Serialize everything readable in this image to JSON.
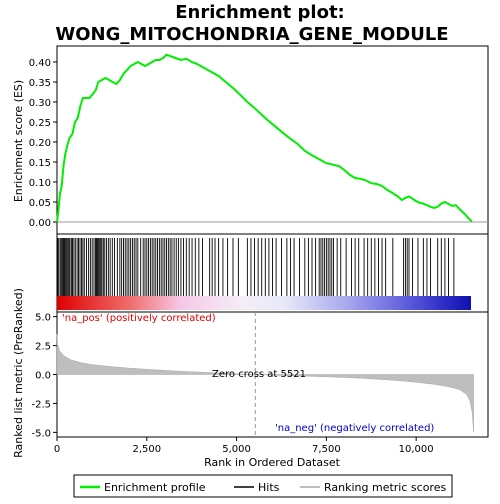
{
  "title_line1": "Enrichment plot:",
  "title_line2": "WONG_MITOCHONDRIA_GENE_MODULE",
  "ylabel_top": "Enrichment score (ES)",
  "ylabel_bottom": "Ranked list metric (PreRanked)",
  "xlabel": "Rank in Ordered Dataset",
  "pos_label": "'na_pos' (positively correlated)",
  "neg_label": "'na_neg' (negatively correlated)",
  "zero_cross_label": "Zero cross at 5521",
  "legend": {
    "enrichment": "Enrichment profile",
    "hits": "Hits",
    "ranking": "Ranking metric scores"
  },
  "colors": {
    "enrichment_line": "#00ee00",
    "hits": "#000000",
    "ranking_fill": "#bebebe",
    "pos_text": "#dd0000",
    "neg_text": "#0000cc"
  },
  "chart_data": {
    "type": "line",
    "x_range": [
      0,
      12000
    ],
    "n_genes": 11600,
    "zero_cross": 5521,
    "es_panel": {
      "ylim": [
        -0.03,
        0.44
      ],
      "y_ticks": [
        0.0,
        0.05,
        0.1,
        0.15,
        0.2,
        0.25,
        0.3,
        0.35,
        0.4
      ],
      "y_tick_labels": [
        "0.00",
        "0.05",
        "0.10",
        "0.15",
        "0.20",
        "0.25",
        "0.30",
        "0.35",
        "0.40"
      ],
      "profile": [
        [
          0,
          0.0
        ],
        [
          40,
          0.03
        ],
        [
          80,
          0.07
        ],
        [
          130,
          0.09
        ],
        [
          180,
          0.14
        ],
        [
          230,
          0.17
        ],
        [
          280,
          0.19
        ],
        [
          350,
          0.21
        ],
        [
          430,
          0.22
        ],
        [
          500,
          0.25
        ],
        [
          580,
          0.26
        ],
        [
          650,
          0.29
        ],
        [
          720,
          0.31
        ],
        [
          800,
          0.31
        ],
        [
          900,
          0.31
        ],
        [
          1000,
          0.32
        ],
        [
          1080,
          0.33
        ],
        [
          1150,
          0.35
        ],
        [
          1250,
          0.355
        ],
        [
          1350,
          0.36
        ],
        [
          1450,
          0.355
        ],
        [
          1550,
          0.35
        ],
        [
          1650,
          0.345
        ],
        [
          1750,
          0.355
        ],
        [
          1850,
          0.37
        ],
        [
          1950,
          0.38
        ],
        [
          2050,
          0.39
        ],
        [
          2150,
          0.395
        ],
        [
          2250,
          0.4
        ],
        [
          2350,
          0.395
        ],
        [
          2450,
          0.39
        ],
        [
          2550,
          0.395
        ],
        [
          2650,
          0.4
        ],
        [
          2750,
          0.405
        ],
        [
          2850,
          0.405
        ],
        [
          2950,
          0.41
        ],
        [
          3050,
          0.418
        ],
        [
          3150,
          0.415
        ],
        [
          3300,
          0.41
        ],
        [
          3450,
          0.405
        ],
        [
          3600,
          0.408
        ],
        [
          3750,
          0.4
        ],
        [
          3900,
          0.395
        ],
        [
          4100,
          0.385
        ],
        [
          4300,
          0.375
        ],
        [
          4500,
          0.365
        ],
        [
          4700,
          0.35
        ],
        [
          4900,
          0.335
        ],
        [
          5100,
          0.318
        ],
        [
          5300,
          0.3
        ],
        [
          5500,
          0.285
        ],
        [
          5700,
          0.268
        ],
        [
          5900,
          0.252
        ],
        [
          6100,
          0.237
        ],
        [
          6300,
          0.222
        ],
        [
          6500,
          0.208
        ],
        [
          6700,
          0.195
        ],
        [
          6900,
          0.178
        ],
        [
          7100,
          0.167
        ],
        [
          7300,
          0.157
        ],
        [
          7500,
          0.147
        ],
        [
          7700,
          0.143
        ],
        [
          7850,
          0.14
        ],
        [
          8000,
          0.13
        ],
        [
          8150,
          0.118
        ],
        [
          8300,
          0.11
        ],
        [
          8450,
          0.108
        ],
        [
          8600,
          0.104
        ],
        [
          8750,
          0.097
        ],
        [
          8900,
          0.095
        ],
        [
          9050,
          0.09
        ],
        [
          9200,
          0.08
        ],
        [
          9350,
          0.072
        ],
        [
          9500,
          0.063
        ],
        [
          9600,
          0.055
        ],
        [
          9700,
          0.06
        ],
        [
          9800,
          0.064
        ],
        [
          9900,
          0.058
        ],
        [
          10000,
          0.052
        ],
        [
          10100,
          0.048
        ],
        [
          10200,
          0.046
        ],
        [
          10300,
          0.042
        ],
        [
          10400,
          0.038
        ],
        [
          10500,
          0.035
        ],
        [
          10600,
          0.038
        ],
        [
          10700,
          0.046
        ],
        [
          10800,
          0.05
        ],
        [
          10900,
          0.045
        ],
        [
          11000,
          0.04
        ],
        [
          11100,
          0.042
        ],
        [
          11200,
          0.033
        ],
        [
          11350,
          0.02
        ],
        [
          11450,
          0.01
        ],
        [
          11550,
          0.002
        ]
      ]
    },
    "hits": [
      20,
      50,
      90,
      120,
      150,
      180,
      210,
      240,
      270,
      300,
      330,
      360,
      400,
      430,
      470,
      510,
      560,
      600,
      640,
      680,
      720,
      760,
      820,
      880,
      930,
      980,
      1030,
      1070,
      1100,
      1130,
      1160,
      1190,
      1220,
      1250,
      1290,
      1330,
      1380,
      1430,
      1480,
      1540,
      1600,
      1680,
      1750,
      1800,
      1850,
      1900,
      1950,
      2000,
      2050,
      2100,
      2150,
      2200,
      2250,
      2330,
      2400,
      2450,
      2500,
      2550,
      2600,
      2650,
      2700,
      2750,
      2800,
      2850,
      2900,
      2950,
      3000,
      3050,
      3100,
      3150,
      3200,
      3260,
      3320,
      3380,
      3450,
      3520,
      3600,
      3680,
      3760,
      3850,
      3950,
      4050,
      4250,
      4320,
      4400,
      4500,
      4620,
      4750,
      4900,
      5050,
      5300,
      5400,
      5500,
      5600,
      5700,
      5800,
      5900,
      6000,
      6100,
      6250,
      6400,
      6500,
      6600,
      6750,
      6900,
      7000,
      7100,
      7200,
      7300,
      7350,
      7400,
      7450,
      7500,
      7550,
      7600,
      7650,
      7700,
      7800,
      7900,
      8050,
      8200,
      8300,
      8400,
      8550,
      8650,
      8750,
      8850,
      8950,
      9050,
      9150,
      9350,
      9650,
      9700,
      9750,
      9800,
      9900,
      10050,
      10200,
      10300,
      10400,
      10600,
      10700,
      10800,
      10900,
      11050
    ],
    "metric_panel": {
      "ylim": [
        -5.4,
        5.4
      ],
      "y_ticks": [
        -5.0,
        -2.5,
        0.0,
        2.5,
        5.0
      ],
      "y_tick_labels": [
        "-5.0",
        "-2.5",
        "0.0",
        "2.5",
        "5.0"
      ],
      "curve": [
        [
          0,
          3.5
        ],
        [
          20,
          2.6
        ],
        [
          80,
          2.0
        ],
        [
          200,
          1.6
        ],
        [
          400,
          1.25
        ],
        [
          700,
          1.0
        ],
        [
          1000,
          0.85
        ],
        [
          1500,
          0.68
        ],
        [
          2000,
          0.55
        ],
        [
          2500,
          0.45
        ],
        [
          3000,
          0.35
        ],
        [
          3500,
          0.27
        ],
        [
          4000,
          0.2
        ],
        [
          4500,
          0.13
        ],
        [
          5000,
          0.06
        ],
        [
          5521,
          0.0
        ],
        [
          6000,
          -0.06
        ],
        [
          6500,
          -0.1
        ],
        [
          7000,
          -0.15
        ],
        [
          7500,
          -0.2
        ],
        [
          8000,
          -0.26
        ],
        [
          8500,
          -0.33
        ],
        [
          9000,
          -0.42
        ],
        [
          9500,
          -0.53
        ],
        [
          10000,
          -0.67
        ],
        [
          10500,
          -0.85
        ],
        [
          10900,
          -1.05
        ],
        [
          11200,
          -1.3
        ],
        [
          11400,
          -1.7
        ],
        [
          11500,
          -2.3
        ],
        [
          11560,
          -3.3
        ],
        [
          11600,
          -5.0
        ]
      ]
    },
    "x_ticks": [
      0,
      2500,
      5000,
      7500,
      10000
    ],
    "x_tick_labels": [
      "0",
      "2,500",
      "5,000",
      "7,500",
      "10,000"
    ]
  }
}
